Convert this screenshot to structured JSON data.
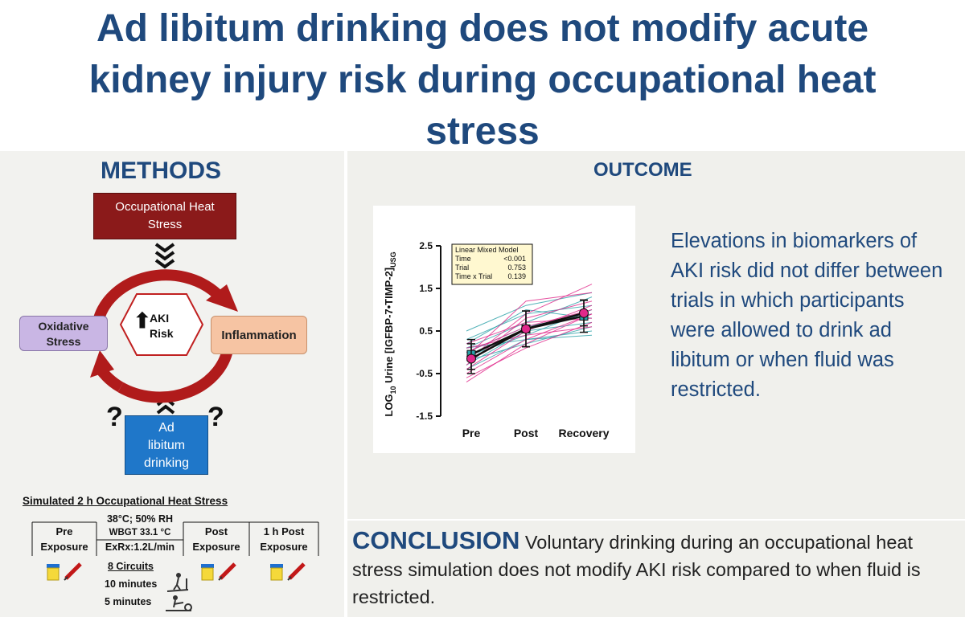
{
  "title": {
    "line1": "Ad libitum drinking does not modify acute",
    "line2": "kidney injury risk during occupational heat",
    "line3": "stress"
  },
  "methods": {
    "heading": "METHODS",
    "heat_box": [
      "Occupational Heat",
      "Stress"
    ],
    "oxidative_box": [
      "Oxidative",
      "Stress"
    ],
    "inflammation_box": "Inflammation",
    "aki_center": [
      "AKI",
      "Risk"
    ],
    "adlib_box": [
      "Ad",
      "libitum",
      "drinking"
    ],
    "question": "?"
  },
  "protocol": {
    "title": "Simulated 2 h Occupational Heat Stress",
    "pre": [
      "Pre",
      "Exposure"
    ],
    "condition_top": "38°C; 50% RH",
    "condition_wbgt": "WBGT 33.1 °C",
    "condition_exrx": "ExRx:1.2L/min",
    "post": [
      "Post",
      "Exposure"
    ],
    "post1h": [
      "1 h Post",
      "Exposure"
    ],
    "circuits": "8 Circuits",
    "min10": "10 minutes",
    "min5": "5 minutes"
  },
  "outcome": {
    "heading": "OUTCOME",
    "text": "Elevations in biomarkers of AKI risk did not differ between trials in which participants were allowed to drink ad libitum or when fluid was restricted."
  },
  "conclusion": {
    "heading": "CONCLUSION",
    "text": "Voluntary drinking during an occupational heat stress simulation does not modify AKI risk compared to when fluid is restricted."
  },
  "chart_data": {
    "type": "line",
    "ylabel_parts": [
      "LOG",
      "10",
      " Urine [IGFBP-7•TIMP-2]",
      "USG"
    ],
    "categories": [
      "Pre",
      "Post",
      "Recovery"
    ],
    "ylim": [
      -1.5,
      2.5
    ],
    "yticks": [
      2.5,
      1.5,
      0.5,
      -0.5,
      -1.5
    ],
    "ytick_labels": [
      "2.5",
      "1.5",
      "0.5",
      "-0.5",
      "-1.5"
    ],
    "colors": {
      "teal": "#2aa0a8",
      "pink": "#e0288a"
    },
    "series": [
      {
        "values": [
          -0.05,
          0.55,
          0.85
        ],
        "errors": [
          0.35,
          0.42,
          0.38
        ],
        "color": "#2aa0a8"
      },
      {
        "values": [
          -0.15,
          0.55,
          0.92
        ],
        "errors": [
          0.35,
          0.42,
          0.3
        ],
        "color": "#e0288a"
      }
    ],
    "individual": {
      "teal": [
        [
          0.3,
          0.9,
          1.1
        ],
        [
          0.1,
          0.7,
          1.3
        ],
        [
          -0.2,
          0.2,
          0.6
        ],
        [
          0.0,
          0.6,
          0.9
        ],
        [
          -0.4,
          0.3,
          0.5
        ],
        [
          0.2,
          1.0,
          0.8
        ],
        [
          -0.1,
          0.4,
          1.0
        ],
        [
          0.5,
          1.1,
          1.4
        ],
        [
          -0.3,
          0.5,
          0.7
        ],
        [
          0.1,
          0.3,
          0.4
        ]
      ],
      "pink": [
        [
          -0.5,
          0.3,
          0.9
        ],
        [
          -0.3,
          0.8,
          1.2
        ],
        [
          0.0,
          0.6,
          1.0
        ],
        [
          -0.6,
          0.1,
          0.7
        ],
        [
          -0.2,
          0.9,
          1.6
        ],
        [
          0.2,
          0.7,
          0.8
        ],
        [
          -0.4,
          0.5,
          1.1
        ],
        [
          -0.1,
          1.2,
          1.4
        ],
        [
          0.1,
          0.4,
          0.6
        ],
        [
          -0.7,
          0.2,
          0.9
        ]
      ]
    },
    "legend": {
      "title": "Linear Mixed Model",
      "rows": [
        [
          "Time",
          "<0.001"
        ],
        [
          "Trial",
          "0.753"
        ],
        [
          "Time x Trial",
          "0.139"
        ]
      ]
    }
  }
}
